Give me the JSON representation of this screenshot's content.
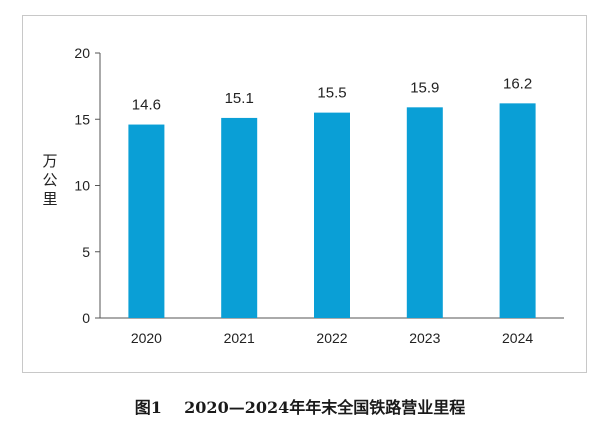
{
  "caption": "图1    2020—2024年年末全国铁路营业里程",
  "chart_data": {
    "type": "bar",
    "categories": [
      "2020",
      "2021",
      "2022",
      "2023",
      "2024"
    ],
    "values": [
      14.6,
      15.1,
      15.5,
      15.9,
      16.2
    ],
    "data_labels": [
      "14.6",
      "15.1",
      "15.5",
      "15.9",
      "16.2"
    ],
    "ylabel": "万公里",
    "xlabel": "",
    "ylim": [
      0,
      20
    ],
    "yticks": [
      0,
      5,
      10,
      15,
      20
    ],
    "grid": false,
    "legend": "none",
    "bar_color": "#0a9fd6",
    "axis_color": "#555555"
  }
}
